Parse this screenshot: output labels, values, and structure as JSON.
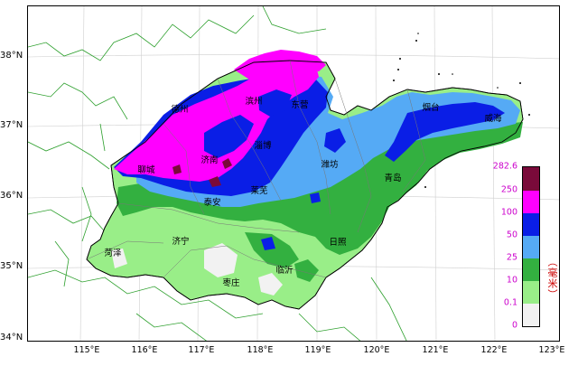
{
  "lat_labels": [
    "38°N",
    "37°N",
    "36°N",
    "35°N",
    "34°N"
  ],
  "lon_labels": [
    "115°E",
    "116°E",
    "117°E",
    "118°E",
    "119°E",
    "120°E",
    "121°E",
    "122°E",
    "123°E"
  ],
  "cities": {
    "dezhou": "德州",
    "binzhou": "滨州",
    "dongying": "东营",
    "yantai": "烟台",
    "weihai": "威海",
    "liaocheng": "聊城",
    "jinan": "济南",
    "zibo": "淄博",
    "weifang": "潍坊",
    "qingdao": "青岛",
    "taian": "泰安",
    "laiwu": "莱芜",
    "heze": "菏泽",
    "jining": "济宁",
    "rizhao": "日照",
    "linyi": "临沂",
    "zaozhuang": "枣庄"
  },
  "legend": {
    "unit": "（毫米）",
    "max_value": "282.6",
    "levels": [
      {
        "label": "250",
        "color": "#7a0a3a"
      },
      {
        "label": "100",
        "color": "#ff00ff"
      },
      {
        "label": "50",
        "color": "#0a1ee6"
      },
      {
        "label": "25",
        "color": "#55aaf5"
      },
      {
        "label": "10",
        "color": "#33b040"
      },
      {
        "label": "0.1",
        "color": "#99ee88"
      },
      {
        "label": "0",
        "color": "#f2f2f2"
      }
    ]
  }
}
